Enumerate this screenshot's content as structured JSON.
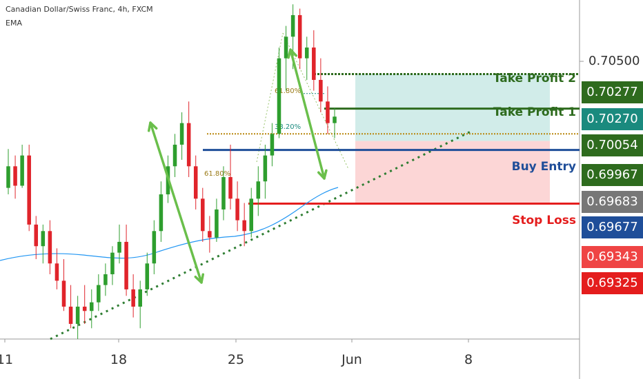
{
  "header": {
    "title": "Canadian Dollar/Swiss Franc, 4h, FXCM",
    "indicator": "EMA"
  },
  "chart_data": {
    "type": "candlestick",
    "symbol": "Canadian Dollar/Swiss Franc",
    "timeframe": "4h",
    "source": "FXCM",
    "y_axis_labels": [
      "0.70500"
    ],
    "x_tick_labels": [
      "11",
      "18",
      "25",
      "Jun",
      "8"
    ],
    "ylim": [
      0.6905,
      0.7062
    ],
    "levels": [
      {
        "name": "Take Profit 2",
        "price": 0.70277,
        "color": "#2e6b1e",
        "tag_color": "#2e6b1e"
      },
      {
        "name": "Take Profit 1",
        "price": 0.7027,
        "color": "#2e6b1e",
        "tag_color": "#1a8a7e"
      },
      {
        "name": "Buy Entry",
        "price": 0.69967,
        "color": "#1f4e99",
        "tag_color": "#2e6b1e"
      },
      {
        "name": "Stop Loss",
        "price": 0.69677,
        "color": "#e41d1d",
        "tag_color": "#1f4e99"
      }
    ],
    "price_tags": [
      {
        "value": "0.70277",
        "color": "#2e6b1e"
      },
      {
        "value": "0.70270",
        "color": "#1a8a7e"
      },
      {
        "value": "0.70054",
        "color": "#2e6b1e"
      },
      {
        "value": "0.69967",
        "color": "#2e6b1e"
      },
      {
        "value": "0.69683",
        "color": "#777777"
      },
      {
        "value": "0.69677",
        "color": "#1f4e99"
      },
      {
        "value": "0.69343",
        "color": "#ef4444"
      },
      {
        "value": "0.69325",
        "color": "#e41d1d"
      }
    ],
    "fib_labels": [
      {
        "text": "61.80%",
        "price": 0.70295
      },
      {
        "text": "38.20%",
        "price": 0.70187
      },
      {
        "text": "61.80%",
        "price": 0.7
      }
    ],
    "candles": [
      [
        0.6975,
        0.6993,
        0.6972,
        0.6985
      ],
      [
        0.6985,
        0.699,
        0.697,
        0.6976
      ],
      [
        0.6976,
        0.6995,
        0.6975,
        0.699
      ],
      [
        0.699,
        0.6995,
        0.6955,
        0.6958
      ],
      [
        0.6958,
        0.6962,
        0.6942,
        0.6948
      ],
      [
        0.6948,
        0.6958,
        0.694,
        0.6955
      ],
      [
        0.6955,
        0.696,
        0.6935,
        0.694
      ],
      [
        0.694,
        0.6947,
        0.6928,
        0.6932
      ],
      [
        0.6932,
        0.6942,
        0.6918,
        0.692
      ],
      [
        0.692,
        0.693,
        0.691,
        0.6912
      ],
      [
        0.6912,
        0.6925,
        0.6905,
        0.692
      ],
      [
        0.692,
        0.693,
        0.6912,
        0.6918
      ],
      [
        0.6918,
        0.6928,
        0.691,
        0.6922
      ],
      [
        0.6922,
        0.6935,
        0.6918,
        0.693
      ],
      [
        0.693,
        0.694,
        0.6925,
        0.6935
      ],
      [
        0.6935,
        0.6948,
        0.693,
        0.6945
      ],
      [
        0.6945,
        0.6958,
        0.694,
        0.695
      ],
      [
        0.695,
        0.6958,
        0.6925,
        0.6928
      ],
      [
        0.6928,
        0.6935,
        0.6915,
        0.692
      ],
      [
        0.692,
        0.6932,
        0.691,
        0.6928
      ],
      [
        0.6928,
        0.6945,
        0.6925,
        0.694
      ],
      [
        0.694,
        0.696,
        0.6935,
        0.6955
      ],
      [
        0.6955,
        0.6978,
        0.695,
        0.6972
      ],
      [
        0.6972,
        0.699,
        0.6968,
        0.6985
      ],
      [
        0.6985,
        0.7,
        0.698,
        0.6995
      ],
      [
        0.6995,
        0.701,
        0.6988,
        0.7005
      ],
      [
        0.7005,
        0.7015,
        0.698,
        0.6985
      ],
      [
        0.6985,
        0.699,
        0.6965,
        0.697
      ],
      [
        0.697,
        0.6975,
        0.695,
        0.6955
      ],
      [
        0.6955,
        0.6962,
        0.6945,
        0.6952
      ],
      [
        0.6952,
        0.697,
        0.695,
        0.6965
      ],
      [
        0.6965,
        0.6985,
        0.696,
        0.698
      ],
      [
        0.698,
        0.6995,
        0.6965,
        0.697
      ],
      [
        0.697,
        0.6978,
        0.6955,
        0.696
      ],
      [
        0.696,
        0.6968,
        0.6948,
        0.6955
      ],
      [
        0.6955,
        0.6975,
        0.6952,
        0.697
      ],
      [
        0.697,
        0.6985,
        0.6962,
        0.6978
      ],
      [
        0.6978,
        0.6995,
        0.697,
        0.699
      ],
      [
        0.699,
        0.7005,
        0.6985,
        0.7
      ],
      [
        0.7,
        0.704,
        0.6998,
        0.7035
      ],
      [
        0.7035,
        0.705,
        0.702,
        0.7045
      ],
      [
        0.7045,
        0.706,
        0.703,
        0.7055
      ],
      [
        0.7055,
        0.7058,
        0.703,
        0.7035
      ],
      [
        0.7035,
        0.7045,
        0.7025,
        0.704
      ],
      [
        0.704,
        0.7048,
        0.702,
        0.7025
      ],
      [
        0.7025,
        0.7035,
        0.701,
        0.7015
      ],
      [
        0.7015,
        0.7022,
        0.7,
        0.7005
      ],
      [
        0.7005,
        0.7012,
        0.6998,
        0.7008
      ]
    ],
    "candle_x_start": 12,
    "candle_x_end": 485
  }
}
